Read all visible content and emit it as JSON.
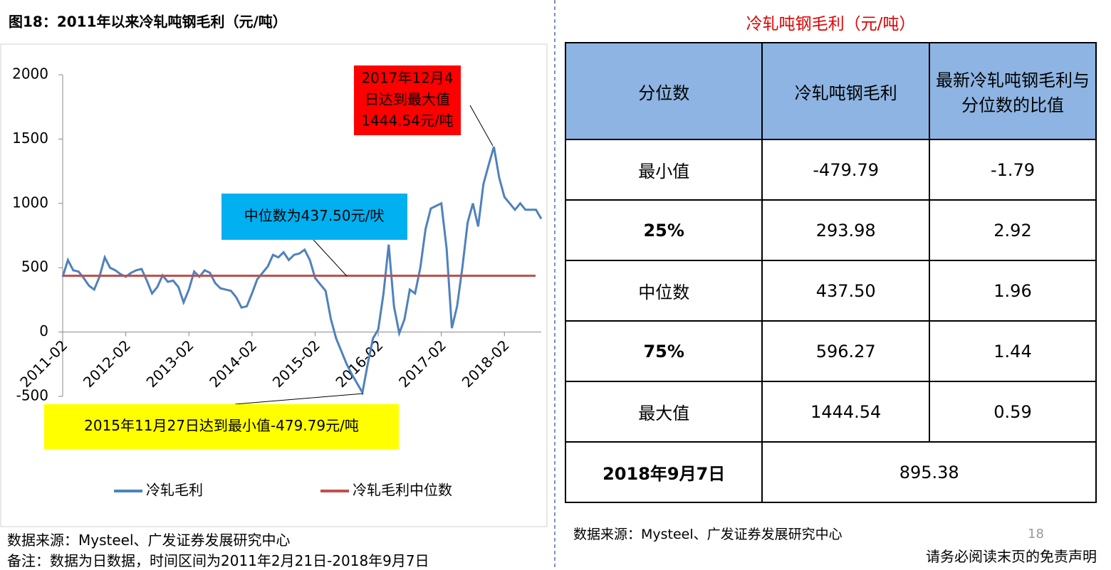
{
  "header": {
    "title": "图18：2011年以来冷轧吨钢毛利（元/吨）"
  },
  "chart_data": {
    "type": "line",
    "x": [
      "2011-02",
      "2011-03",
      "2011-04",
      "2011-05",
      "2011-06",
      "2011-07",
      "2011-08",
      "2011-09",
      "2011-10",
      "2011-11",
      "2011-12",
      "2012-01",
      "2012-02",
      "2012-03",
      "2012-04",
      "2012-05",
      "2012-06",
      "2012-07",
      "2012-08",
      "2012-09",
      "2012-10",
      "2012-11",
      "2012-12",
      "2013-01",
      "2013-02",
      "2013-03",
      "2013-04",
      "2013-05",
      "2013-06",
      "2013-07",
      "2013-08",
      "2013-09",
      "2013-10",
      "2013-11",
      "2013-12",
      "2014-01",
      "2014-02",
      "2014-03",
      "2014-04",
      "2014-05",
      "2014-06",
      "2014-07",
      "2014-08",
      "2014-09",
      "2014-10",
      "2014-11",
      "2014-12",
      "2015-01",
      "2015-02",
      "2015-03",
      "2015-04",
      "2015-05",
      "2015-06",
      "2015-07",
      "2015-08",
      "2015-09",
      "2015-10",
      "2015-11",
      "2015-12",
      "2016-01",
      "2016-02",
      "2016-03",
      "2016-04",
      "2016-05",
      "2016-06",
      "2016-07",
      "2016-08",
      "2016-09",
      "2016-10",
      "2016-11",
      "2016-12",
      "2017-01",
      "2017-02",
      "2017-03",
      "2017-04",
      "2017-05",
      "2017-06",
      "2017-07",
      "2017-08",
      "2017-09",
      "2017-10",
      "2017-11",
      "2017-12",
      "2018-01",
      "2018-02",
      "2018-03",
      "2018-04",
      "2018-05",
      "2018-06",
      "2018-07",
      "2018-08",
      "2018-09"
    ],
    "series": [
      {
        "name": "冷轧毛利",
        "color": "#4f81bd",
        "values": [
          430,
          560,
          480,
          470,
          420,
          360,
          330,
          430,
          580,
          500,
          480,
          450,
          430,
          460,
          480,
          490,
          400,
          300,
          350,
          440,
          390,
          400,
          350,
          230,
          330,
          470,
          430,
          480,
          460,
          380,
          340,
          330,
          320,
          270,
          190,
          200,
          300,
          410,
          460,
          510,
          600,
          580,
          620,
          560,
          600,
          610,
          640,
          560,
          420,
          370,
          320,
          100,
          -50,
          -150,
          -250,
          -330,
          -400,
          -470,
          -250,
          -50,
          20,
          300,
          680,
          200,
          -10,
          100,
          330,
          300,
          500,
          800,
          960,
          980,
          1000,
          650,
          30,
          200,
          500,
          850,
          1000,
          820,
          1150,
          1300,
          1440,
          1200,
          1050,
          1000,
          950,
          1000,
          950,
          950,
          950,
          880
        ]
      }
    ],
    "hline": {
      "name": "冷轧毛利中位数",
      "color": "#c0504d",
      "value": 437.5
    },
    "xlim": [
      "2011-02",
      "2018-09"
    ],
    "xticks": [
      "2011-02",
      "2012-02",
      "2013-02",
      "2014-02",
      "2015-02",
      "2016-02",
      "2017-02",
      "2018-02"
    ],
    "ylim": [
      -500,
      2000
    ],
    "yticks": [
      -500,
      0,
      500,
      1000,
      1500,
      2000
    ],
    "annotations": [
      {
        "lines": [
          "2017年12月4",
          "日达到最大值",
          "1444.54元/吨"
        ],
        "color": "#ff0000"
      },
      {
        "lines": [
          "中位数为437.50元/吠"
        ],
        "color": "#00b0f0"
      },
      {
        "lines": [
          "2015年11月27日达到最小值-479.79元/吨"
        ],
        "color": "#ffff00"
      }
    ]
  },
  "table": {
    "title": "冷轧吨钢毛利（元/吨）",
    "header": [
      "分位数",
      "冷轧吨钢毛利",
      "最新冷轧吨钢毛利与分位数的比值"
    ],
    "rows": [
      [
        "最小值",
        "-479.79",
        "-1.79"
      ],
      [
        "25%",
        "293.98",
        "2.92"
      ],
      [
        "中位数",
        "437.50",
        "1.96"
      ],
      [
        "75%",
        "596.27",
        "1.44"
      ],
      [
        "最大值",
        "1444.54",
        "0.59"
      ],
      [
        "2018年9月7日",
        "895.38"
      ]
    ]
  },
  "footer": {
    "source_left": "数据来源：Mysteel、广发证券发展研究中心",
    "note": "备注：数据为日数据，时间区间为2011年2月21日-2018年9月7日",
    "source_right": "数据来源：Mysteel、广发证券发展研究中心",
    "page": "18",
    "disclaimer": "请务必阅读末页的免责声明"
  }
}
